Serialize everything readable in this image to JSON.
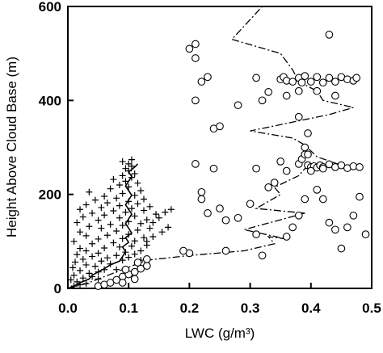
{
  "chart_data": {
    "type": "scatter",
    "title": "",
    "xlabel": "LWC (g/m³)",
    "ylabel": "Height Above Cloud Base (m)",
    "xlim": [
      0,
      0.5
    ],
    "ylim": [
      0,
      600
    ],
    "x_ticks": [
      "0.0",
      "0.1",
      "0.2",
      "0.3",
      "0.4",
      "0.5"
    ],
    "y_ticks": [
      "0",
      "200",
      "400",
      "600"
    ],
    "grid": false,
    "legend": "none",
    "series": [
      {
        "marker": "plus",
        "points": [
          [
            0.01,
            5
          ],
          [
            0.02,
            8
          ],
          [
            0.03,
            10
          ],
          [
            0.015,
            14
          ],
          [
            0.005,
            18
          ],
          [
            0.025,
            22
          ],
          [
            0.04,
            25
          ],
          [
            0.01,
            28
          ],
          [
            0.035,
            32
          ],
          [
            0.05,
            35
          ],
          [
            0.02,
            38
          ],
          [
            0.06,
            40
          ],
          [
            0.008,
            44
          ],
          [
            0.045,
            47
          ],
          [
            0.03,
            50
          ],
          [
            0.07,
            52
          ],
          [
            0.012,
            56
          ],
          [
            0.055,
            58
          ],
          [
            0.09,
            60
          ],
          [
            0.025,
            62
          ],
          [
            0.065,
            65
          ],
          [
            0.1,
            66
          ],
          [
            0.04,
            68
          ],
          [
            0.08,
            70
          ],
          [
            0.015,
            72
          ],
          [
            0.11,
            73
          ],
          [
            0.05,
            75
          ],
          [
            0.095,
            77
          ],
          [
            0.03,
            80
          ],
          [
            0.12,
            80
          ],
          [
            0.02,
            85
          ],
          [
            0.06,
            86
          ],
          [
            0.085,
            88
          ],
          [
            0.105,
            90
          ],
          [
            0.13,
            92
          ],
          [
            0.04,
            95
          ],
          [
            0.075,
            97
          ],
          [
            0.01,
            100
          ],
          [
            0.11,
            101
          ],
          [
            0.05,
            105
          ],
          [
            0.09,
            106
          ],
          [
            0.125,
            108
          ],
          [
            0.14,
            110
          ],
          [
            0.03,
            112
          ],
          [
            0.065,
            113
          ],
          [
            0.1,
            115
          ],
          [
            0.02,
            120
          ],
          [
            0.08,
            122
          ],
          [
            0.115,
            124
          ],
          [
            0.055,
            128
          ],
          [
            0.135,
            128
          ],
          [
            0.035,
            132
          ],
          [
            0.09,
            134
          ],
          [
            0.07,
            136
          ],
          [
            0.12,
            138
          ],
          [
            0.015,
            140
          ],
          [
            0.1,
            142
          ],
          [
            0.05,
            145
          ],
          [
            0.13,
            146
          ],
          [
            0.085,
            150
          ],
          [
            0.025,
            152
          ],
          [
            0.11,
            154
          ],
          [
            0.06,
            156
          ],
          [
            0.145,
            158
          ],
          [
            0.04,
            160
          ],
          [
            0.095,
            162
          ],
          [
            0.075,
            165
          ],
          [
            0.125,
            166
          ],
          [
            0.02,
            168
          ],
          [
            0.105,
            170
          ],
          [
            0.055,
            172
          ],
          [
            0.135,
            174
          ],
          [
            0.085,
            176
          ],
          [
            0.03,
            178
          ],
          [
            0.115,
            180
          ],
          [
            0.065,
            182
          ],
          [
            0.1,
            185
          ],
          [
            0.045,
            188
          ],
          [
            0.125,
            190
          ],
          [
            0.08,
            192
          ],
          [
            0.06,
            196
          ],
          [
            0.11,
            198
          ],
          [
            0.09,
            202
          ],
          [
            0.035,
            205
          ],
          [
            0.12,
            208
          ],
          [
            0.07,
            212
          ],
          [
            0.1,
            216
          ],
          [
            0.085,
            220
          ],
          [
            0.115,
            224
          ],
          [
            0.095,
            228
          ],
          [
            0.075,
            232
          ],
          [
            0.105,
            236
          ],
          [
            0.09,
            240
          ],
          [
            0.11,
            244
          ],
          [
            0.1,
            250
          ],
          [
            0.095,
            255
          ],
          [
            0.105,
            260
          ],
          [
            0.1,
            265
          ],
          [
            0.09,
            270
          ],
          [
            0.105,
            274
          ],
          [
            0.14,
            140
          ],
          [
            0.15,
            150
          ],
          [
            0.16,
            162
          ],
          [
            0.17,
            168
          ],
          [
            0.155,
            120
          ],
          [
            0.165,
            130
          ],
          [
            0.13,
            100
          ],
          [
            0.12,
            60
          ],
          [
            0.08,
            40
          ],
          [
            0.05,
            20
          ]
        ]
      },
      {
        "marker": "circle",
        "points": [
          [
            0.05,
            5
          ],
          [
            0.06,
            8
          ],
          [
            0.07,
            12
          ],
          [
            0.08,
            18
          ],
          [
            0.09,
            25
          ],
          [
            0.1,
            30
          ],
          [
            0.11,
            35
          ],
          [
            0.12,
            42
          ],
          [
            0.13,
            48
          ],
          [
            0.11,
            20
          ],
          [
            0.09,
            12
          ],
          [
            0.095,
            40
          ],
          [
            0.115,
            55
          ],
          [
            0.13,
            62
          ],
          [
            0.2,
            75
          ],
          [
            0.26,
            80
          ],
          [
            0.28,
            150
          ],
          [
            0.23,
            160
          ],
          [
            0.25,
            170
          ],
          [
            0.22,
            205
          ],
          [
            0.22,
            190
          ],
          [
            0.26,
            145
          ],
          [
            0.3,
            180
          ],
          [
            0.31,
            115
          ],
          [
            0.32,
            70
          ],
          [
            0.33,
            215
          ],
          [
            0.34,
            225
          ],
          [
            0.36,
            110
          ],
          [
            0.37,
            130
          ],
          [
            0.38,
            155
          ],
          [
            0.39,
            190
          ],
          [
            0.41,
            210
          ],
          [
            0.42,
            190
          ],
          [
            0.43,
            140
          ],
          [
            0.44,
            125
          ],
          [
            0.46,
            130
          ],
          [
            0.47,
            155
          ],
          [
            0.48,
            195
          ],
          [
            0.49,
            115
          ],
          [
            0.45,
            85
          ],
          [
            0.19,
            80
          ],
          [
            0.21,
            265
          ],
          [
            0.24,
            255
          ],
          [
            0.31,
            255
          ],
          [
            0.35,
            270
          ],
          [
            0.38,
            265
          ],
          [
            0.385,
            275
          ],
          [
            0.39,
            285
          ],
          [
            0.395,
            262
          ],
          [
            0.4,
            258
          ],
          [
            0.405,
            260
          ],
          [
            0.41,
            257
          ],
          [
            0.415,
            262
          ],
          [
            0.42,
            258
          ],
          [
            0.43,
            264
          ],
          [
            0.44,
            258
          ],
          [
            0.45,
            262
          ],
          [
            0.46,
            256
          ],
          [
            0.47,
            260
          ],
          [
            0.48,
            258
          ],
          [
            0.36,
            250
          ],
          [
            0.39,
            300
          ],
          [
            0.395,
            285
          ],
          [
            0.395,
            330
          ],
          [
            0.38,
            365
          ],
          [
            0.4,
            250
          ],
          [
            0.42,
            255
          ],
          [
            0.24,
            340
          ],
          [
            0.25,
            345
          ],
          [
            0.28,
            390
          ],
          [
            0.32,
            400
          ],
          [
            0.33,
            418
          ],
          [
            0.31,
            448
          ],
          [
            0.35,
            445
          ],
          [
            0.355,
            450
          ],
          [
            0.36,
            442
          ],
          [
            0.37,
            440
          ],
          [
            0.38,
            448
          ],
          [
            0.385,
            438
          ],
          [
            0.39,
            452
          ],
          [
            0.4,
            440
          ],
          [
            0.41,
            450
          ],
          [
            0.42,
            438
          ],
          [
            0.43,
            448
          ],
          [
            0.44,
            440
          ],
          [
            0.45,
            450
          ],
          [
            0.46,
            445
          ],
          [
            0.47,
            442
          ],
          [
            0.475,
            448
          ],
          [
            0.41,
            420
          ],
          [
            0.44,
            410
          ],
          [
            0.38,
            420
          ],
          [
            0.36,
            410
          ],
          [
            0.21,
            400
          ],
          [
            0.22,
            440
          ],
          [
            0.2,
            510
          ],
          [
            0.21,
            520
          ],
          [
            0.21,
            490
          ],
          [
            0.43,
            540
          ],
          [
            0.23,
            450
          ]
        ]
      },
      {
        "line": "solid",
        "points": [
          [
            0.0,
            0
          ],
          [
            0.01,
            5
          ],
          [
            0.02,
            12
          ],
          [
            0.035,
            20
          ],
          [
            0.04,
            28
          ],
          [
            0.05,
            35
          ],
          [
            0.06,
            42
          ],
          [
            0.07,
            50
          ],
          [
            0.085,
            58
          ],
          [
            0.09,
            68
          ],
          [
            0.095,
            78
          ],
          [
            0.09,
            88
          ],
          [
            0.1,
            98
          ],
          [
            0.095,
            108
          ],
          [
            0.105,
            118
          ],
          [
            0.1,
            128
          ],
          [
            0.095,
            138
          ],
          [
            0.1,
            148
          ],
          [
            0.105,
            158
          ],
          [
            0.1,
            168
          ],
          [
            0.095,
            178
          ],
          [
            0.1,
            188
          ],
          [
            0.105,
            198
          ],
          [
            0.1,
            208
          ],
          [
            0.095,
            218
          ],
          [
            0.1,
            228
          ],
          [
            0.105,
            238
          ],
          [
            0.1,
            248
          ],
          [
            0.11,
            258
          ],
          [
            0.115,
            265
          ]
        ]
      },
      {
        "line": "dashdot",
        "points": [
          [
            0.0,
            0
          ],
          [
            0.03,
            10
          ],
          [
            0.06,
            25
          ],
          [
            0.1,
            45
          ],
          [
            0.13,
            60
          ],
          [
            0.2,
            70
          ],
          [
            0.29,
            80
          ],
          [
            0.34,
            95
          ],
          [
            0.33,
            110
          ],
          [
            0.36,
            105
          ],
          [
            0.29,
            125
          ],
          [
            0.39,
            160
          ],
          [
            0.31,
            170
          ],
          [
            0.35,
            200
          ],
          [
            0.34,
            215
          ],
          [
            0.38,
            240
          ],
          [
            0.39,
            255
          ],
          [
            0.45,
            262
          ],
          [
            0.41,
            280
          ],
          [
            0.39,
            305
          ],
          [
            0.37,
            320
          ],
          [
            0.3,
            335
          ],
          [
            0.43,
            370
          ],
          [
            0.47,
            385
          ],
          [
            0.42,
            400
          ],
          [
            0.41,
            420
          ],
          [
            0.38,
            440
          ],
          [
            0.37,
            465
          ],
          [
            0.35,
            500
          ],
          [
            0.27,
            530
          ],
          [
            0.32,
            610
          ]
        ]
      }
    ]
  }
}
